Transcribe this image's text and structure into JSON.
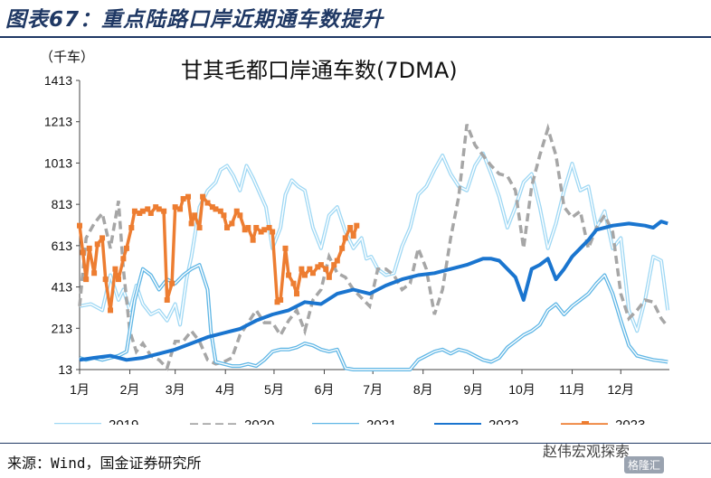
{
  "figure_title": "图表67：重点陆路口岸近期通车数提升",
  "source_note": "来源：Wind，国金证券研究所",
  "watermark": "赵伟宏观探索",
  "watermark_badge": "格隆汇",
  "chart_data": {
    "type": "line",
    "title": "甘其毛都口岸通车数(7DMA)",
    "ylabel": "（千车）",
    "xlabel": "",
    "ylim": [
      13,
      1413
    ],
    "xlim": [
      1,
      365
    ],
    "y_ticks": [
      13,
      213,
      413,
      613,
      813,
      1013,
      1213,
      1413
    ],
    "x_tick_positions": [
      1,
      32,
      60,
      91,
      121,
      152,
      182,
      213,
      244,
      274,
      305,
      335
    ],
    "x_tick_labels": [
      "1月",
      "2月",
      "3月",
      "4月",
      "5月",
      "6月",
      "7月",
      "8月",
      "9月",
      "10月",
      "11月",
      "12月"
    ],
    "legend_position": "bottom",
    "grid": false,
    "series": [
      {
        "name": "2019",
        "color": "#9fd8f4",
        "style": "double",
        "x": [
          1,
          8,
          15,
          20,
          25,
          28,
          32,
          36,
          40,
          45,
          50,
          55,
          60,
          63,
          67,
          70,
          75,
          80,
          85,
          88,
          92,
          96,
          100,
          104,
          108,
          112,
          116,
          120,
          125,
          128,
          132,
          136,
          140,
          145,
          150,
          155,
          160,
          165,
          170,
          175,
          178,
          181,
          185,
          190,
          195,
          200,
          205,
          210,
          215,
          220,
          225,
          230,
          235,
          240,
          245,
          250,
          255,
          260,
          265,
          270,
          275,
          280,
          285,
          290,
          295,
          300,
          305,
          310,
          315,
          320,
          325,
          330,
          335,
          340,
          345,
          350,
          355,
          360,
          364
        ],
        "y": [
          320,
          330,
          300,
          470,
          350,
          400,
          300,
          420,
          330,
          280,
          300,
          250,
          330,
          230,
          450,
          560,
          800,
          880,
          920,
          980,
          1000,
          950,
          880,
          1000,
          940,
          870,
          800,
          600,
          700,
          860,
          930,
          900,
          880,
          700,
          600,
          760,
          800,
          680,
          600,
          650,
          550,
          560,
          500,
          470,
          480,
          610,
          700,
          860,
          900,
          980,
          1050,
          960,
          900,
          880,
          1000,
          1060,
          960,
          850,
          700,
          800,
          920,
          960,
          800,
          600,
          720,
          880,
          1010,
          880,
          900,
          700,
          780,
          600,
          650,
          300,
          200,
          350,
          560,
          540,
          300
        ]
      },
      {
        "name": "2020",
        "color": "#a6a6a6",
        "style": "dashed",
        "x": [
          1,
          5,
          10,
          15,
          20,
          25,
          28,
          32,
          36,
          40,
          45,
          50,
          55,
          60,
          65,
          70,
          75,
          80,
          85,
          90,
          95,
          100,
          105,
          110,
          115,
          120,
          125,
          130,
          135,
          140,
          145,
          150,
          155,
          160,
          165,
          170,
          175,
          180,
          185,
          190,
          195,
          200,
          205,
          210,
          215,
          220,
          225,
          230,
          235,
          240,
          245,
          250,
          255,
          260,
          265,
          270,
          275,
          280,
          285,
          290,
          295,
          300,
          305,
          310,
          315,
          320,
          325,
          330,
          335,
          340,
          345,
          350,
          355,
          360,
          364
        ],
        "y": [
          320,
          650,
          720,
          770,
          600,
          830,
          500,
          200,
          100,
          140,
          80,
          60,
          20,
          150,
          150,
          200,
          150,
          60,
          40,
          50,
          70,
          180,
          240,
          300,
          240,
          240,
          180,
          250,
          300,
          200,
          350,
          400,
          560,
          480,
          460,
          400,
          360,
          320,
          500,
          500,
          470,
          400,
          430,
          600,
          500,
          280,
          400,
          650,
          850,
          1200,
          1100,
          1050,
          1000,
          960,
          950,
          880,
          600,
          900,
          1050,
          1180,
          1050,
          800,
          750,
          780,
          600,
          700,
          760,
          680,
          380,
          260,
          300,
          350,
          340,
          260,
          220
        ]
      },
      {
        "name": "2021",
        "color": "#5fb6e5",
        "style": "double",
        "x": [
          1,
          5,
          10,
          15,
          20,
          25,
          30,
          35,
          40,
          45,
          50,
          55,
          60,
          65,
          70,
          75,
          80,
          82,
          85,
          90,
          95,
          100,
          105,
          110,
          115,
          120,
          125,
          130,
          135,
          140,
          145,
          150,
          155,
          160,
          165,
          170,
          175,
          180,
          185,
          190,
          195,
          200,
          205,
          210,
          215,
          220,
          225,
          230,
          235,
          240,
          245,
          250,
          255,
          260,
          265,
          270,
          275,
          280,
          285,
          290,
          295,
          300,
          305,
          310,
          315,
          320,
          325,
          330,
          335,
          340,
          345,
          350,
          355,
          360,
          364
        ],
        "y": [
          70,
          60,
          70,
          60,
          70,
          80,
          100,
          350,
          500,
          470,
          400,
          450,
          430,
          470,
          500,
          520,
          400,
          200,
          50,
          40,
          30,
          30,
          40,
          30,
          60,
          100,
          110,
          110,
          120,
          140,
          130,
          110,
          100,
          110,
          20,
          13,
          13,
          13,
          13,
          13,
          13,
          13,
          13,
          60,
          80,
          100,
          110,
          90,
          110,
          100,
          80,
          60,
          50,
          70,
          120,
          150,
          180,
          200,
          230,
          300,
          330,
          280,
          320,
          350,
          380,
          430,
          470,
          380,
          250,
          130,
          80,
          70,
          60,
          55,
          50
        ]
      },
      {
        "name": "2022",
        "color": "#1a75cf",
        "style": "thick",
        "x": [
          1,
          10,
          20,
          30,
          40,
          50,
          60,
          70,
          80,
          90,
          100,
          110,
          120,
          130,
          140,
          150,
          160,
          170,
          180,
          190,
          200,
          210,
          220,
          230,
          240,
          250,
          255,
          260,
          265,
          270,
          275,
          280,
          285,
          290,
          295,
          300,
          305,
          310,
          315,
          320,
          330,
          340,
          350,
          355,
          360,
          364
        ],
        "y": [
          60,
          70,
          80,
          60,
          70,
          90,
          110,
          140,
          170,
          190,
          210,
          250,
          280,
          300,
          340,
          330,
          380,
          400,
          380,
          420,
          450,
          470,
          480,
          500,
          520,
          550,
          550,
          540,
          500,
          460,
          350,
          500,
          520,
          550,
          450,
          500,
          560,
          600,
          640,
          690,
          710,
          720,
          710,
          700,
          730,
          720
        ]
      },
      {
        "name": "2023",
        "color": "#ed7d31",
        "style": "square-markers",
        "x": [
          1,
          3,
          5,
          7,
          10,
          12,
          15,
          17,
          20,
          23,
          25,
          28,
          30,
          33,
          35,
          38,
          40,
          43,
          45,
          48,
          50,
          53,
          55,
          58,
          60,
          63,
          65,
          68,
          70,
          72,
          75,
          77,
          80,
          83,
          85,
          88,
          90,
          92,
          95,
          98,
          100,
          103,
          105,
          108,
          110,
          113,
          115,
          118,
          120,
          123,
          125,
          128,
          130,
          133,
          135,
          138,
          140,
          143,
          145,
          148,
          150,
          153,
          155,
          158,
          160,
          163,
          165,
          168,
          170,
          172
        ],
        "y": [
          710,
          580,
          450,
          600,
          480,
          620,
          650,
          450,
          300,
          500,
          450,
          550,
          600,
          700,
          780,
          770,
          780,
          790,
          770,
          800,
          790,
          780,
          350,
          430,
          800,
          790,
          840,
          850,
          720,
          760,
          700,
          850,
          820,
          800,
          790,
          780,
          760,
          700,
          720,
          780,
          760,
          690,
          700,
          640,
          700,
          680,
          690,
          700,
          680,
          340,
          350,
          600,
          470,
          430,
          380,
          500,
          470,
          500,
          480,
          510,
          520,
          500,
          460,
          520,
          540,
          600,
          650,
          700,
          660,
          710
        ]
      }
    ]
  }
}
